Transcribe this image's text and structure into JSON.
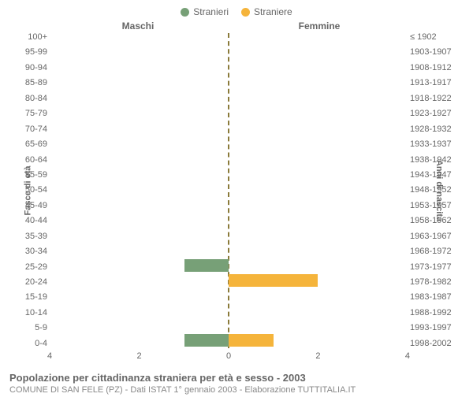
{
  "legend": {
    "male": {
      "label": "Stranieri",
      "color": "#77a077"
    },
    "female": {
      "label": "Straniere",
      "color": "#f5b43b"
    }
  },
  "headers": {
    "male": "Maschi",
    "female": "Femmine",
    "left_axis_title": "Fasce di età",
    "right_axis_title": "Anni di nascita"
  },
  "chart": {
    "type": "population-pyramid",
    "xmax": 4,
    "xticks_left": [
      "4",
      "2",
      "0"
    ],
    "xticks_right": [
      "0",
      "2",
      "4"
    ],
    "centerline_color": "#8a7a3a",
    "male_color": "#77a077",
    "female_color": "#f5b43b",
    "rows": [
      {
        "age": "100+",
        "birth": "≤ 1902",
        "m": 0,
        "f": 0
      },
      {
        "age": "95-99",
        "birth": "1903-1907",
        "m": 0,
        "f": 0
      },
      {
        "age": "90-94",
        "birth": "1908-1912",
        "m": 0,
        "f": 0
      },
      {
        "age": "85-89",
        "birth": "1913-1917",
        "m": 0,
        "f": 0
      },
      {
        "age": "80-84",
        "birth": "1918-1922",
        "m": 0,
        "f": 0
      },
      {
        "age": "75-79",
        "birth": "1923-1927",
        "m": 0,
        "f": 0
      },
      {
        "age": "70-74",
        "birth": "1928-1932",
        "m": 0,
        "f": 0
      },
      {
        "age": "65-69",
        "birth": "1933-1937",
        "m": 0,
        "f": 0
      },
      {
        "age": "60-64",
        "birth": "1938-1942",
        "m": 0,
        "f": 0
      },
      {
        "age": "55-59",
        "birth": "1943-1947",
        "m": 0,
        "f": 0
      },
      {
        "age": "50-54",
        "birth": "1948-1952",
        "m": 0,
        "f": 0
      },
      {
        "age": "45-49",
        "birth": "1953-1957",
        "m": 0,
        "f": 0
      },
      {
        "age": "40-44",
        "birth": "1958-1962",
        "m": 0,
        "f": 0
      },
      {
        "age": "35-39",
        "birth": "1963-1967",
        "m": 0,
        "f": 0
      },
      {
        "age": "30-34",
        "birth": "1968-1972",
        "m": 0,
        "f": 0
      },
      {
        "age": "25-29",
        "birth": "1973-1977",
        "m": 1,
        "f": 0
      },
      {
        "age": "20-24",
        "birth": "1978-1982",
        "m": 0,
        "f": 2
      },
      {
        "age": "15-19",
        "birth": "1983-1987",
        "m": 0,
        "f": 0
      },
      {
        "age": "10-14",
        "birth": "1988-1992",
        "m": 0,
        "f": 0
      },
      {
        "age": "5-9",
        "birth": "1993-1997",
        "m": 0,
        "f": 0
      },
      {
        "age": "0-4",
        "birth": "1998-2002",
        "m": 1,
        "f": 1
      }
    ]
  },
  "footer": {
    "title": "Popolazione per cittadinanza straniera per età e sesso - 2003",
    "subtitle": "COMUNE DI SAN FELE (PZ) - Dati ISTAT 1° gennaio 2003 - Elaborazione TUTTITALIA.IT"
  }
}
